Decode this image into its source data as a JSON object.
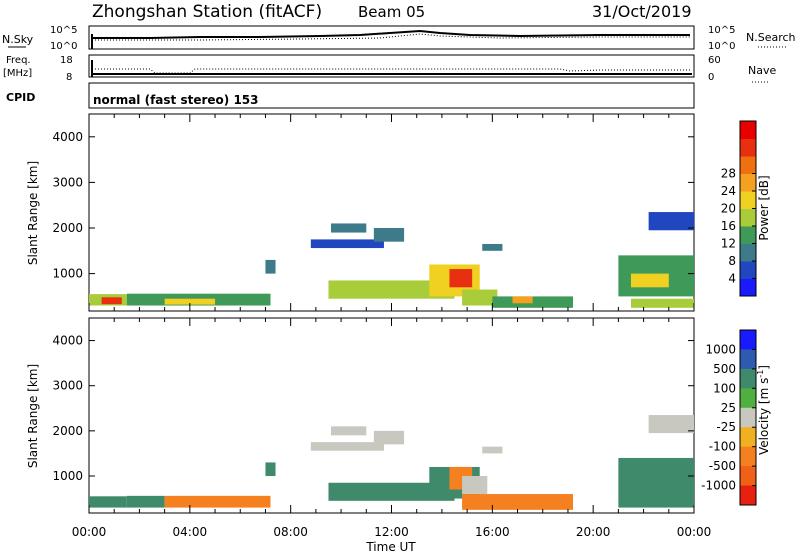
{
  "header": {
    "title": "Zhongshan Station (fitACF)",
    "beam": "Beam 05",
    "date": "31/Oct/2019"
  },
  "panels": {
    "nsky": {
      "label": "N.Sky",
      "right_label": "N.Search",
      "tick_top": "10^5",
      "tick_bottom": "10^0",
      "rtick_top": "10^5",
      "rtick_bottom": "10^0"
    },
    "freq": {
      "label_top": "Freq.",
      "label_unit": "[MHz]",
      "left_top": "18",
      "left_bottom": "8",
      "right_top": "60",
      "right_bottom": "0",
      "right_label": "Nave"
    },
    "cpid": {
      "label": "CPID",
      "text": "normal (fast stereo) 153"
    }
  },
  "time_axis": {
    "label": "Time UT",
    "ticks": [
      "00:00",
      "04:00",
      "08:00",
      "12:00",
      "16:00",
      "20:00",
      "00:00"
    ]
  },
  "range_axis": {
    "label": "Slant Range [km]",
    "ticks": [
      "1000",
      "2000",
      "3000",
      "4000"
    ]
  },
  "power_scale": {
    "label": "Power [dB]",
    "ticks": [
      "4",
      "8",
      "12",
      "16",
      "20",
      "24",
      "28"
    ],
    "colors": [
      "#1a1aff",
      "#2047c0",
      "#3d7a8a",
      "#3f9a5a",
      "#a8cc3a",
      "#f0d020",
      "#f5a020",
      "#f07010",
      "#e83010",
      "#e80000"
    ]
  },
  "velocity_scale": {
    "label": "Velocity [m s",
    "label_sup": "-1",
    "label_end": "]",
    "ticks": [
      "1000",
      "500",
      "100",
      "25",
      "-25",
      "-100",
      "-500",
      "-1000"
    ],
    "colors": [
      "#1a1aff",
      "#2e5ab0",
      "#3f8a6a",
      "#4fb040",
      "#c8c8c0",
      "#f0b020",
      "#f58020",
      "#f06018",
      "#e82010"
    ]
  },
  "chart_data": [
    {
      "type": "heatmap",
      "title": "Power",
      "xlabel": "Time UT",
      "ylabel": "Slant Range [km]",
      "xlim": [
        0,
        24
      ],
      "ylim": [
        180,
        4500
      ],
      "colorbar_label": "Power [dB]",
      "cells": [
        {
          "t0": 0.0,
          "t1": 1.5,
          "r0": 300,
          "r1": 550,
          "v": 14
        },
        {
          "t0": 0.5,
          "t1": 1.3,
          "r0": 330,
          "r1": 480,
          "v": 27
        },
        {
          "t0": 1.5,
          "t1": 7.2,
          "r0": 300,
          "r1": 560,
          "v": 12
        },
        {
          "t0": 3.0,
          "t1": 5.0,
          "r0": 320,
          "r1": 450,
          "v": 18
        },
        {
          "t0": 7.0,
          "t1": 7.4,
          "r0": 1000,
          "r1": 1300,
          "v": 9
        },
        {
          "t0": 8.8,
          "t1": 11.7,
          "r0": 1560,
          "r1": 1750,
          "v": 5
        },
        {
          "t0": 9.6,
          "t1": 11.0,
          "r0": 1900,
          "r1": 2100,
          "v": 9
        },
        {
          "t0": 11.3,
          "t1": 12.5,
          "r0": 1700,
          "r1": 2000,
          "v": 7
        },
        {
          "t0": 9.5,
          "t1": 14.5,
          "r0": 450,
          "r1": 850,
          "v": 13
        },
        {
          "t0": 13.5,
          "t1": 15.5,
          "r0": 500,
          "r1": 1200,
          "v": 17
        },
        {
          "t0": 14.3,
          "t1": 15.2,
          "r0": 700,
          "r1": 1100,
          "v": 26
        },
        {
          "t0": 14.8,
          "t1": 16.2,
          "r0": 300,
          "r1": 650,
          "v": 14
        },
        {
          "t0": 16.0,
          "t1": 19.2,
          "r0": 250,
          "r1": 500,
          "v": 12
        },
        {
          "t0": 16.8,
          "t1": 17.6,
          "r0": 350,
          "r1": 500,
          "v": 22
        },
        {
          "t0": 15.6,
          "t1": 16.4,
          "r0": 1500,
          "r1": 1650,
          "v": 7
        },
        {
          "t0": 21.0,
          "t1": 24.0,
          "r0": 500,
          "r1": 1400,
          "v": 10
        },
        {
          "t0": 21.5,
          "t1": 23.0,
          "r0": 700,
          "r1": 1000,
          "v": 18
        },
        {
          "t0": 22.2,
          "t1": 24.0,
          "r0": 1950,
          "r1": 2350,
          "v": 6
        },
        {
          "t0": 21.5,
          "t1": 24.0,
          "r0": 250,
          "r1": 450,
          "v": 15
        }
      ]
    },
    {
      "type": "heatmap",
      "title": "Velocity",
      "xlabel": "Time UT",
      "ylabel": "Slant Range [km]",
      "xlim": [
        0,
        24
      ],
      "ylim": [
        180,
        4500
      ],
      "colorbar_label": "Velocity [m s-1]",
      "cells": [
        {
          "t0": 0.0,
          "t1": 1.5,
          "r0": 300,
          "r1": 550,
          "v": 400
        },
        {
          "t0": 1.5,
          "t1": 3.0,
          "r0": 300,
          "r1": 560,
          "v": 150
        },
        {
          "t0": 3.0,
          "t1": 7.2,
          "r0": 300,
          "r1": 560,
          "v": -300
        },
        {
          "t0": 7.0,
          "t1": 7.4,
          "r0": 1000,
          "r1": 1300,
          "v": 200
        },
        {
          "t0": 8.8,
          "t1": 11.7,
          "r0": 1560,
          "r1": 1750,
          "v": 0
        },
        {
          "t0": 9.6,
          "t1": 11.0,
          "r0": 1900,
          "r1": 2100,
          "v": 0
        },
        {
          "t0": 11.3,
          "t1": 12.5,
          "r0": 1700,
          "r1": 2000,
          "v": 0
        },
        {
          "t0": 9.5,
          "t1": 14.5,
          "r0": 450,
          "r1": 850,
          "v": 300
        },
        {
          "t0": 13.5,
          "t1": 15.5,
          "r0": 500,
          "r1": 1200,
          "v": 250
        },
        {
          "t0": 14.3,
          "t1": 15.2,
          "r0": 700,
          "r1": 1200,
          "v": -400
        },
        {
          "t0": 14.8,
          "t1": 15.8,
          "r0": 600,
          "r1": 1000,
          "v": 0
        },
        {
          "t0": 14.8,
          "t1": 19.2,
          "r0": 250,
          "r1": 600,
          "v": -150
        },
        {
          "t0": 15.6,
          "t1": 16.4,
          "r0": 1500,
          "r1": 1650,
          "v": 0
        },
        {
          "t0": 21.0,
          "t1": 24.0,
          "r0": 300,
          "r1": 1400,
          "v": 200
        },
        {
          "t0": 22.2,
          "t1": 24.0,
          "r0": 1950,
          "r1": 2350,
          "v": 0
        }
      ]
    }
  ]
}
